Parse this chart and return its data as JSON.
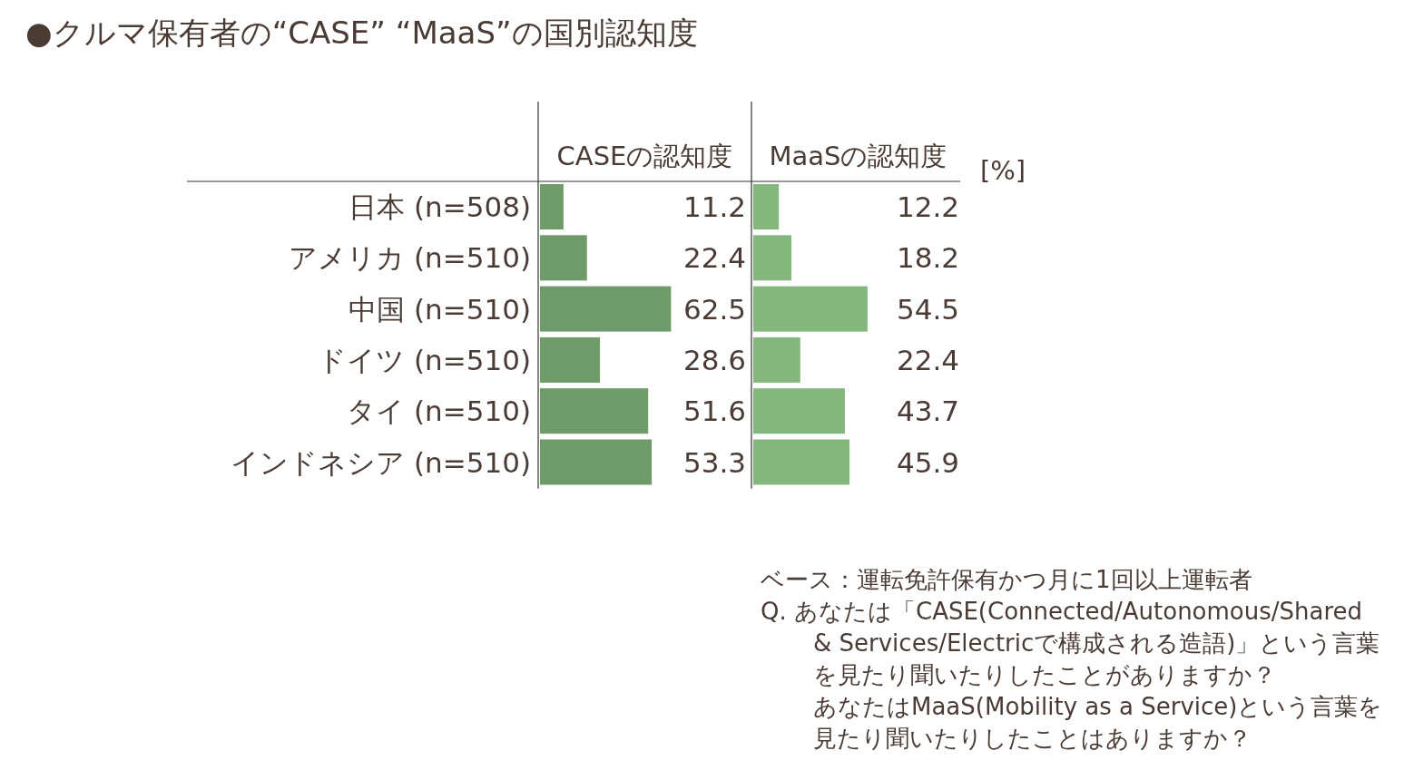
{
  "chart_data": [
    {
      "type": "bar",
      "orientation": "horizontal",
      "title": "●クルマ保有者の“CASE” “MaaS”の国別認知度",
      "categories": [
        "日本 (n=508)",
        "アメリカ (n=510)",
        "中国 (n=510)",
        "ドイツ (n=510)",
        "タイ (n=510)",
        "インドネシア (n=510)"
      ],
      "series": [
        {
          "name": "CASEの認知度",
          "color": "#6f9a69",
          "values": [
            11.2,
            22.4,
            62.5,
            28.6,
            51.6,
            53.3
          ]
        }
      ],
      "data_labels": true,
      "tick_labels": "y",
      "annotations": [
        "ベース：運転免許保有かつ月に1回以上運転者",
        "Q.  あなたは「CASE(Connected/Autonomous/Shared & Services/Electricで構成される造語)」という言葉を見たり聞いたりしたことがありますか？",
        "あなたはMaaS(Mobility as a Service)という言葉を見たり聞いたりしたことはありますか？"
      ]
    },
    {
      "type": "bar",
      "orientation": "horizontal",
      "categories": [
        null,
        null,
        null,
        null,
        null,
        null
      ],
      "series": [
        {
          "name": "MaaSの認知度",
          "color": "#83b77e",
          "values": [
            12.2,
            18.2,
            54.5,
            22.4,
            43.7,
            45.9
          ]
        }
      ],
      "data_labels": true,
      "tick_labels": false,
      "annotations": [
        "[%]"
      ]
    }
  ]
}
